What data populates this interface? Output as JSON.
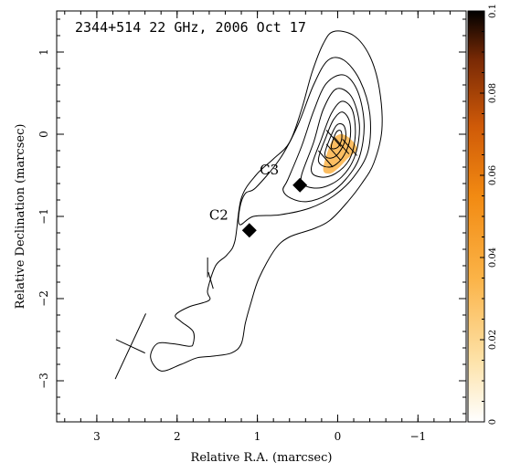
{
  "chart_data": {
    "type": "contour",
    "title": "2344+514 22 GHz, 2006 Oct 17",
    "xlabel": "Relative R.A. (marcsec)",
    "ylabel": "Relative Declination (marcsec)",
    "xlim": [
      3.5,
      -1.6
    ],
    "ylim": [
      -3.5,
      1.5
    ],
    "x_reversed": true,
    "x_ticks": [
      3,
      2,
      1,
      0,
      -1
    ],
    "x_tick_labels": [
      "3",
      "2",
      "1",
      "0",
      "−1"
    ],
    "y_ticks": [
      1,
      0,
      -1,
      -2,
      -3
    ],
    "y_tick_labels": [
      "1",
      "0",
      "−1",
      "−2",
      "−3"
    ],
    "colorbar": {
      "range": [
        0,
        0.1
      ],
      "ticks": [
        0,
        0.02,
        0.04,
        0.06,
        0.08,
        0.1
      ],
      "tick_labels": [
        "0",
        "0.02",
        "0.04",
        "0.06",
        "0.08",
        "0.1"
      ],
      "colors": [
        "#ffffff",
        "#fde2a8",
        "#fbb347",
        "#f28a12",
        "#cf5a08",
        "#7a2a05",
        "#000000"
      ]
    },
    "components": [
      {
        "label": "C3",
        "x": 0.47,
        "y": -0.62
      },
      {
        "label": "C2",
        "x": 1.1,
        "y": -1.17
      }
    ],
    "core": {
      "x": 0.02,
      "y": 0.02
    },
    "contours": [
      [
        [
          1.8,
          -2.55
        ],
        [
          1.8,
          -2.4
        ],
        [
          1.95,
          -2.28
        ],
        [
          2.02,
          -2.2
        ],
        [
          1.85,
          -2.1
        ],
        [
          1.6,
          -2.02
        ],
        [
          1.62,
          -1.9
        ],
        [
          1.52,
          -1.6
        ],
        [
          1.38,
          -1.47
        ],
        [
          1.28,
          -1.3
        ],
        [
          1.2,
          -0.78
        ],
        [
          1.02,
          -0.5
        ],
        [
          0.8,
          -0.3
        ],
        [
          0.6,
          -0.1
        ],
        [
          0.45,
          0.3
        ],
        [
          0.32,
          0.75
        ],
        [
          0.18,
          1.1
        ],
        [
          0.05,
          1.25
        ],
        [
          -0.2,
          1.2
        ],
        [
          -0.4,
          0.95
        ],
        [
          -0.52,
          0.55
        ],
        [
          -0.55,
          0.05
        ],
        [
          -0.45,
          -0.35
        ],
        [
          -0.3,
          -0.6
        ],
        [
          -0.1,
          -0.85
        ],
        [
          0.1,
          -1.05
        ],
        [
          0.3,
          -1.15
        ],
        [
          0.6,
          -1.25
        ],
        [
          0.78,
          -1.4
        ],
        [
          0.98,
          -1.75
        ],
        [
          1.08,
          -2.05
        ],
        [
          1.15,
          -2.3
        ],
        [
          1.2,
          -2.55
        ],
        [
          1.32,
          -2.66
        ],
        [
          1.55,
          -2.7
        ],
        [
          1.75,
          -2.72
        ],
        [
          1.95,
          -2.8
        ],
        [
          2.2,
          -2.88
        ],
        [
          2.33,
          -2.72
        ],
        [
          2.25,
          -2.55
        ],
        [
          2.05,
          -2.55
        ],
        [
          1.85,
          -2.58
        ]
      ],
      [
        [
          1.02,
          -0.65
        ],
        [
          0.72,
          -0.3
        ],
        [
          0.5,
          0.1
        ],
        [
          0.3,
          0.6
        ],
        [
          0.12,
          0.9
        ],
        [
          -0.08,
          0.9
        ],
        [
          -0.28,
          0.65
        ],
        [
          -0.4,
          0.25
        ],
        [
          -0.38,
          -0.2
        ],
        [
          -0.2,
          -0.52
        ],
        [
          0.05,
          -0.75
        ],
        [
          0.35,
          -0.9
        ],
        [
          0.72,
          -0.98
        ],
        [
          1.05,
          -1.0
        ],
        [
          1.22,
          -1.1
        ],
        [
          1.22,
          -0.9
        ],
        [
          1.15,
          -0.72
        ]
      ],
      [
        [
          0.62,
          -0.55
        ],
        [
          0.45,
          -0.15
        ],
        [
          0.3,
          0.28
        ],
        [
          0.14,
          0.62
        ],
        [
          -0.08,
          0.72
        ],
        [
          -0.25,
          0.52
        ],
        [
          -0.33,
          0.12
        ],
        [
          -0.27,
          -0.28
        ],
        [
          -0.1,
          -0.55
        ],
        [
          0.12,
          -0.73
        ],
        [
          0.38,
          -0.82
        ],
        [
          0.58,
          -0.78
        ],
        [
          0.68,
          -0.68
        ]
      ],
      [
        [
          0.45,
          -0.5
        ],
        [
          0.3,
          -0.1
        ],
        [
          0.18,
          0.3
        ],
        [
          0.02,
          0.55
        ],
        [
          -0.17,
          0.46
        ],
        [
          -0.27,
          0.12
        ],
        [
          -0.22,
          -0.25
        ],
        [
          -0.05,
          -0.52
        ],
        [
          0.2,
          -0.65
        ],
        [
          0.42,
          -0.62
        ]
      ],
      [
        [
          0.33,
          -0.42
        ],
        [
          0.2,
          -0.05
        ],
        [
          0.08,
          0.25
        ],
        [
          -0.05,
          0.4
        ],
        [
          -0.18,
          0.3
        ],
        [
          -0.22,
          0.0
        ],
        [
          -0.15,
          -0.3
        ],
        [
          0.03,
          -0.48
        ],
        [
          0.22,
          -0.52
        ]
      ],
      [
        [
          0.24,
          -0.32
        ],
        [
          0.14,
          -0.02
        ],
        [
          0.05,
          0.18
        ],
        [
          -0.06,
          0.27
        ],
        [
          -0.15,
          0.15
        ],
        [
          -0.15,
          -0.08
        ],
        [
          -0.05,
          -0.3
        ],
        [
          0.1,
          -0.4
        ]
      ],
      [
        [
          0.16,
          -0.24
        ],
        [
          0.07,
          0.01
        ],
        [
          0.0,
          0.12
        ],
        [
          -0.08,
          0.1
        ],
        [
          -0.1,
          -0.05
        ],
        [
          -0.02,
          -0.22
        ],
        [
          0.08,
          -0.29
        ]
      ],
      [
        [
          0.08,
          -0.16
        ],
        [
          0.02,
          0.02
        ],
        [
          -0.04,
          0.04
        ],
        [
          -0.05,
          -0.06
        ],
        [
          0.0,
          -0.16
        ]
      ]
    ],
    "polarized_patch": [
      [
        0.18,
        -0.42
      ],
      [
        0.08,
        -0.1
      ],
      [
        -0.03,
        0.0
      ],
      [
        -0.15,
        -0.05
      ],
      [
        -0.24,
        -0.18
      ],
      [
        -0.12,
        -0.3
      ],
      [
        0.0,
        -0.42
      ],
      [
        0.1,
        -0.48
      ]
    ],
    "evpa_vectors": [
      {
        "x": 0.15,
        "y": -0.3,
        "dx": 0.09,
        "dy": 0.1
      },
      {
        "x": 0.05,
        "y": -0.22,
        "dx": 0.09,
        "dy": 0.1
      },
      {
        "x": -0.05,
        "y": -0.14,
        "dx": 0.09,
        "dy": 0.1
      },
      {
        "x": -0.15,
        "y": -0.16,
        "dx": 0.09,
        "dy": 0.1
      },
      {
        "x": 0.05,
        "y": -0.05,
        "dx": 0.09,
        "dy": 0.1
      }
    ],
    "faint_vectors": [
      {
        "x": 1.62,
        "y": -1.62,
        "dx": 0.0,
        "dy": 0.12
      },
      {
        "x": 1.58,
        "y": -1.78,
        "dx": 0.03,
        "dy": 0.1
      }
    ],
    "beam": {
      "x": 2.58,
      "y": -2.58,
      "major": 0.9,
      "minor": 0.4,
      "pa_deg": -25
    }
  }
}
